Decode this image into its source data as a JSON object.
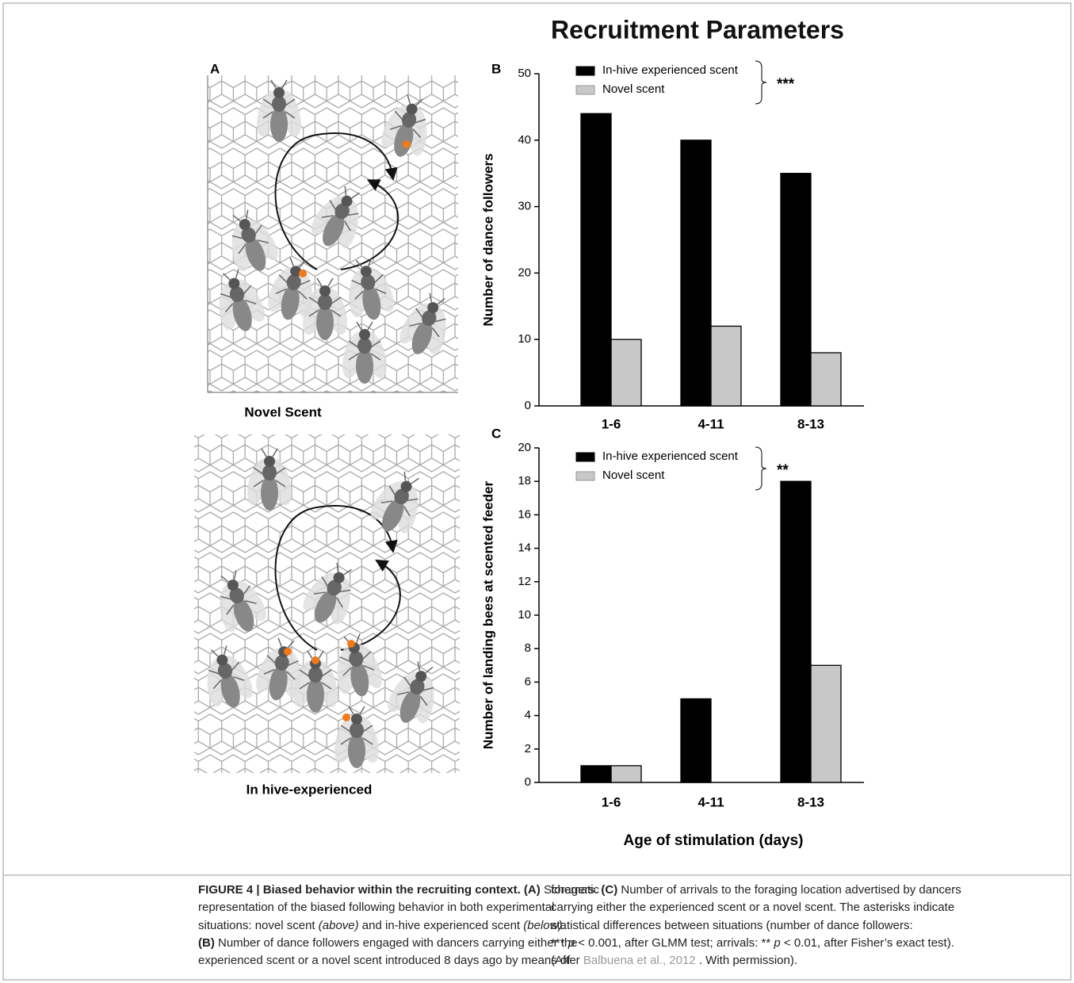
{
  "figure": {
    "title": "Recruitment Parameters",
    "panel": "A",
    "illustration_labels": [
      "Novel Scent",
      "In hive-experienced"
    ]
  },
  "chart_data": [
    {
      "type": "bar",
      "panel": "B",
      "ylabel": "Number of dance followers",
      "categories": [
        "1-6",
        "4-11",
        "8-13"
      ],
      "series": [
        {
          "name": "In-hive experienced scent",
          "color": "#000000",
          "values": [
            44,
            40,
            35
          ]
        },
        {
          "name": "Novel scent",
          "color": "#c8c8c8",
          "values": [
            10,
            12,
            8
          ]
        }
      ],
      "ylim": [
        0,
        50
      ],
      "yticks": [
        0,
        10,
        20,
        30,
        40,
        50
      ],
      "significance": "***"
    },
    {
      "type": "bar",
      "panel": "C",
      "ylabel": "Number of landing bees at scented feeder",
      "xlabel": "Age of stimulation (days)",
      "categories": [
        "1-6",
        "4-11",
        "8-13"
      ],
      "series": [
        {
          "name": "In-hive experienced scent",
          "color": "#000000",
          "values": [
            1,
            5,
            18
          ]
        },
        {
          "name": "Novel scent",
          "color": "#c8c8c8",
          "values": [
            1,
            0,
            7
          ]
        }
      ],
      "ylim": [
        0,
        20
      ],
      "yticks": [
        0,
        2,
        4,
        6,
        8,
        10,
        12,
        14,
        16,
        18,
        20
      ],
      "significance": "**"
    }
  ],
  "caption": {
    "columns": [
      [
        [
          {
            "text": "FIGURE 4 | Biased behavior within the recruiting context. (A)",
            "style": "bold"
          },
          {
            "text": "Schematic",
            "style": "plain"
          }
        ],
        [
          {
            "text": "representation of the biased following behavior in both experimental",
            "style": "plain"
          }
        ],
        [
          {
            "text": "situations: novel scent",
            "style": "plain"
          },
          {
            "text": "(above)",
            "style": "italic"
          },
          {
            "text": "and in-hive experienced scent",
            "style": "plain"
          },
          {
            "text": "(below).",
            "style": "italic"
          }
        ],
        [
          {
            "text": "(B)",
            "style": "bold"
          },
          {
            "text": "Number of dance followers engaged with dancers carrying either the",
            "style": "plain"
          }
        ],
        [
          {
            "text": "experienced scent or a novel scent introduced 8 days ago by means of",
            "style": "plain"
          }
        ]
      ],
      [
        [
          {
            "text": "foragers.",
            "style": "plain"
          },
          {
            "text": "(C)",
            "style": "bold"
          },
          {
            "text": "Number of arrivals to the foraging location advertised by dancers",
            "style": "plain"
          }
        ],
        [
          {
            "text": "carrying either the experienced scent or a novel scent. The asterisks indicate",
            "style": "plain"
          }
        ],
        [
          {
            "text": "statistical differences between situations (number of dance followers:",
            "style": "plain"
          }
        ],
        [
          {
            "text": "***",
            "style": "plain"
          },
          {
            "text": "p",
            "style": "italic"
          },
          {
            "text": "< 0.001, after GLMM test; arrivals: **",
            "style": "plain"
          },
          {
            "text": "p",
            "style": "italic"
          },
          {
            "text": "< 0.01, after Fisher’s exact test).",
            "style": "plain"
          }
        ],
        [
          {
            "text": "(After",
            "style": "plain"
          },
          {
            "text": "Balbuena et al., 2012",
            "style": "link"
          },
          {
            "text": ". With permission).",
            "style": "plain"
          }
        ]
      ]
    ]
  }
}
